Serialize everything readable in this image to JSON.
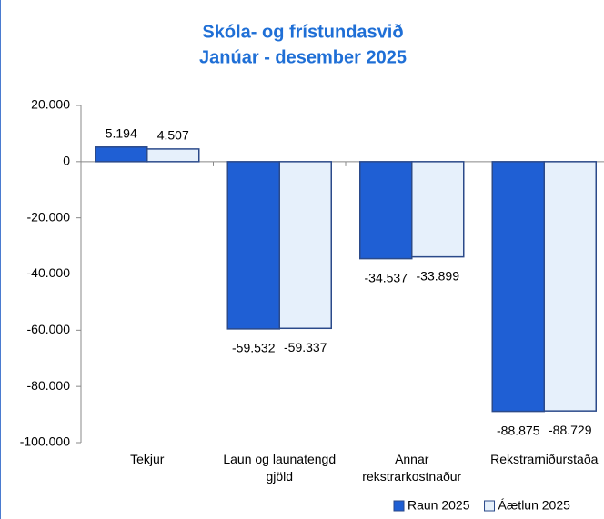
{
  "chart_data": {
    "type": "bar",
    "title": "Skóla- og frístundasvið",
    "subtitle": "Janúar - desember 2025",
    "categories": [
      "Tekjur",
      "Laun og launatengd gjöld",
      "Annar rekstrarkostnaður",
      "Rekstrarniðurstaða"
    ],
    "series": [
      {
        "name": "Raun 2025",
        "color": "#1f5fd4",
        "values": [
          5194,
          -59532,
          -34537,
          -88875
        ],
        "value_labels": [
          "5.194",
          "-59.532",
          "-34.537",
          "-88.875"
        ]
      },
      {
        "name": "Áætlun 2025",
        "color": "#e6f0fb",
        "values": [
          4507,
          -59337,
          -33899,
          -88729
        ],
        "value_labels": [
          "4.507",
          "-59.337",
          "-33.899",
          "-88.729"
        ]
      }
    ],
    "ylim": [
      -100000,
      20000
    ],
    "yticks": [
      {
        "value": -100000,
        "label": "-100.000"
      },
      {
        "value": -80000,
        "label": "-80.000"
      },
      {
        "value": -60000,
        "label": "-60.000"
      },
      {
        "value": -40000,
        "label": "-40.000"
      },
      {
        "value": -20000,
        "label": "-20.000"
      },
      0,
      {
        "value": 20000,
        "label": "20.000"
      }
    ],
    "legend": "bottom-right"
  }
}
